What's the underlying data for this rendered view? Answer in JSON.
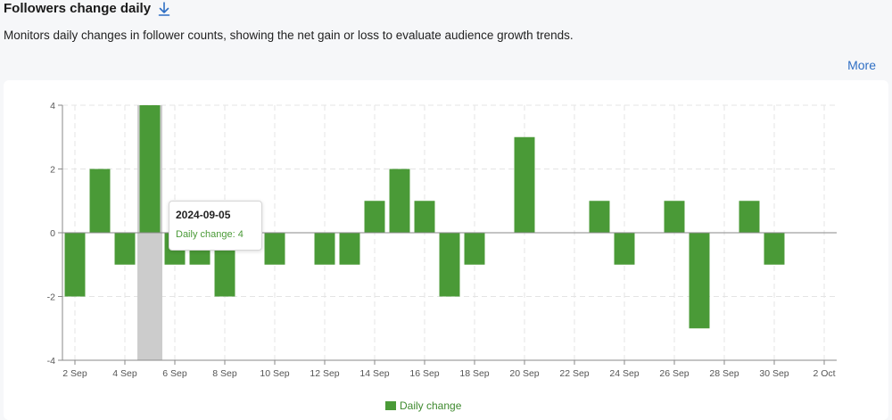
{
  "header": {
    "title": "Followers change daily",
    "subtitle": "Monitors daily changes in follower counts, showing the net gain or loss to evaluate audience growth trends.",
    "more_label": "More",
    "download_icon": "download-arrow-icon"
  },
  "tooltip": {
    "date": "2024-09-05",
    "series_label": "Daily change: 4"
  },
  "colors": {
    "bar": "#4a9a37",
    "highlight": "#cccccc",
    "grid": "#e4e4e4",
    "axis": "#8a8a8a",
    "link": "#2f6fc4"
  },
  "chart_data": {
    "type": "bar",
    "x": [
      "2 Sep",
      "3 Sep",
      "4 Sep",
      "5 Sep",
      "6 Sep",
      "7 Sep",
      "8 Sep",
      "9 Sep",
      "10 Sep",
      "11 Sep",
      "12 Sep",
      "13 Sep",
      "14 Sep",
      "15 Sep",
      "16 Sep",
      "17 Sep",
      "18 Sep",
      "19 Sep",
      "20 Sep",
      "21 Sep",
      "22 Sep",
      "23 Sep",
      "24 Sep",
      "25 Sep",
      "26 Sep",
      "27 Sep",
      "28 Sep",
      "29 Sep",
      "30 Sep",
      "1 Oct",
      "2 Oct"
    ],
    "x_tick_labels": [
      "2 Sep",
      "4 Sep",
      "6 Sep",
      "8 Sep",
      "10 Sep",
      "12 Sep",
      "14 Sep",
      "16 Sep",
      "18 Sep",
      "20 Sep",
      "22 Sep",
      "24 Sep",
      "26 Sep",
      "28 Sep",
      "30 Sep",
      "2 Oct"
    ],
    "series": [
      {
        "name": "Daily change",
        "values": [
          -2,
          2,
          -1,
          4,
          -1,
          -1,
          -2,
          0,
          -1,
          0,
          -1,
          -1,
          1,
          2,
          1,
          -2,
          -1,
          0,
          3,
          0,
          0,
          1,
          -1,
          0,
          1,
          -3,
          0,
          1,
          -1,
          0,
          0
        ]
      }
    ],
    "y_ticks": [
      -4,
      -2,
      0,
      2,
      4
    ],
    "ylim": [
      -4,
      4
    ],
    "highlight_date": "5 Sep",
    "grid": true,
    "legend": "bottom"
  }
}
